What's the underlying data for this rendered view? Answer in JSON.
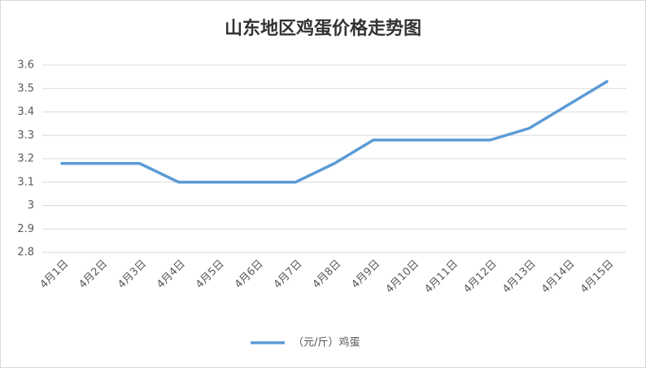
{
  "chart_data": {
    "type": "line",
    "title": "山东地区鸡蛋价格走势图",
    "categories": [
      "4月1日",
      "4月2日",
      "4月3日",
      "4月4日",
      "4月5日",
      "4月6日",
      "4月7日",
      "4月8日",
      "4月9日",
      "4月10日",
      "4月11日",
      "4月12日",
      "4月13日",
      "4月14日",
      "4月15日"
    ],
    "series": [
      {
        "name": "（元/斤）鸡蛋",
        "color": "#5b9bd5",
        "values": [
          3.18,
          3.18,
          3.18,
          3.1,
          3.1,
          3.1,
          3.1,
          3.18,
          3.28,
          3.28,
          3.28,
          3.28,
          3.33,
          3.43,
          3.53
        ]
      }
    ],
    "ylim": [
      2.8,
      3.6
    ],
    "yticks": [
      2.8,
      2.9,
      3,
      3.1,
      3.2,
      3.3,
      3.4,
      3.5,
      3.6
    ],
    "grid": true,
    "legend": "bottom"
  }
}
